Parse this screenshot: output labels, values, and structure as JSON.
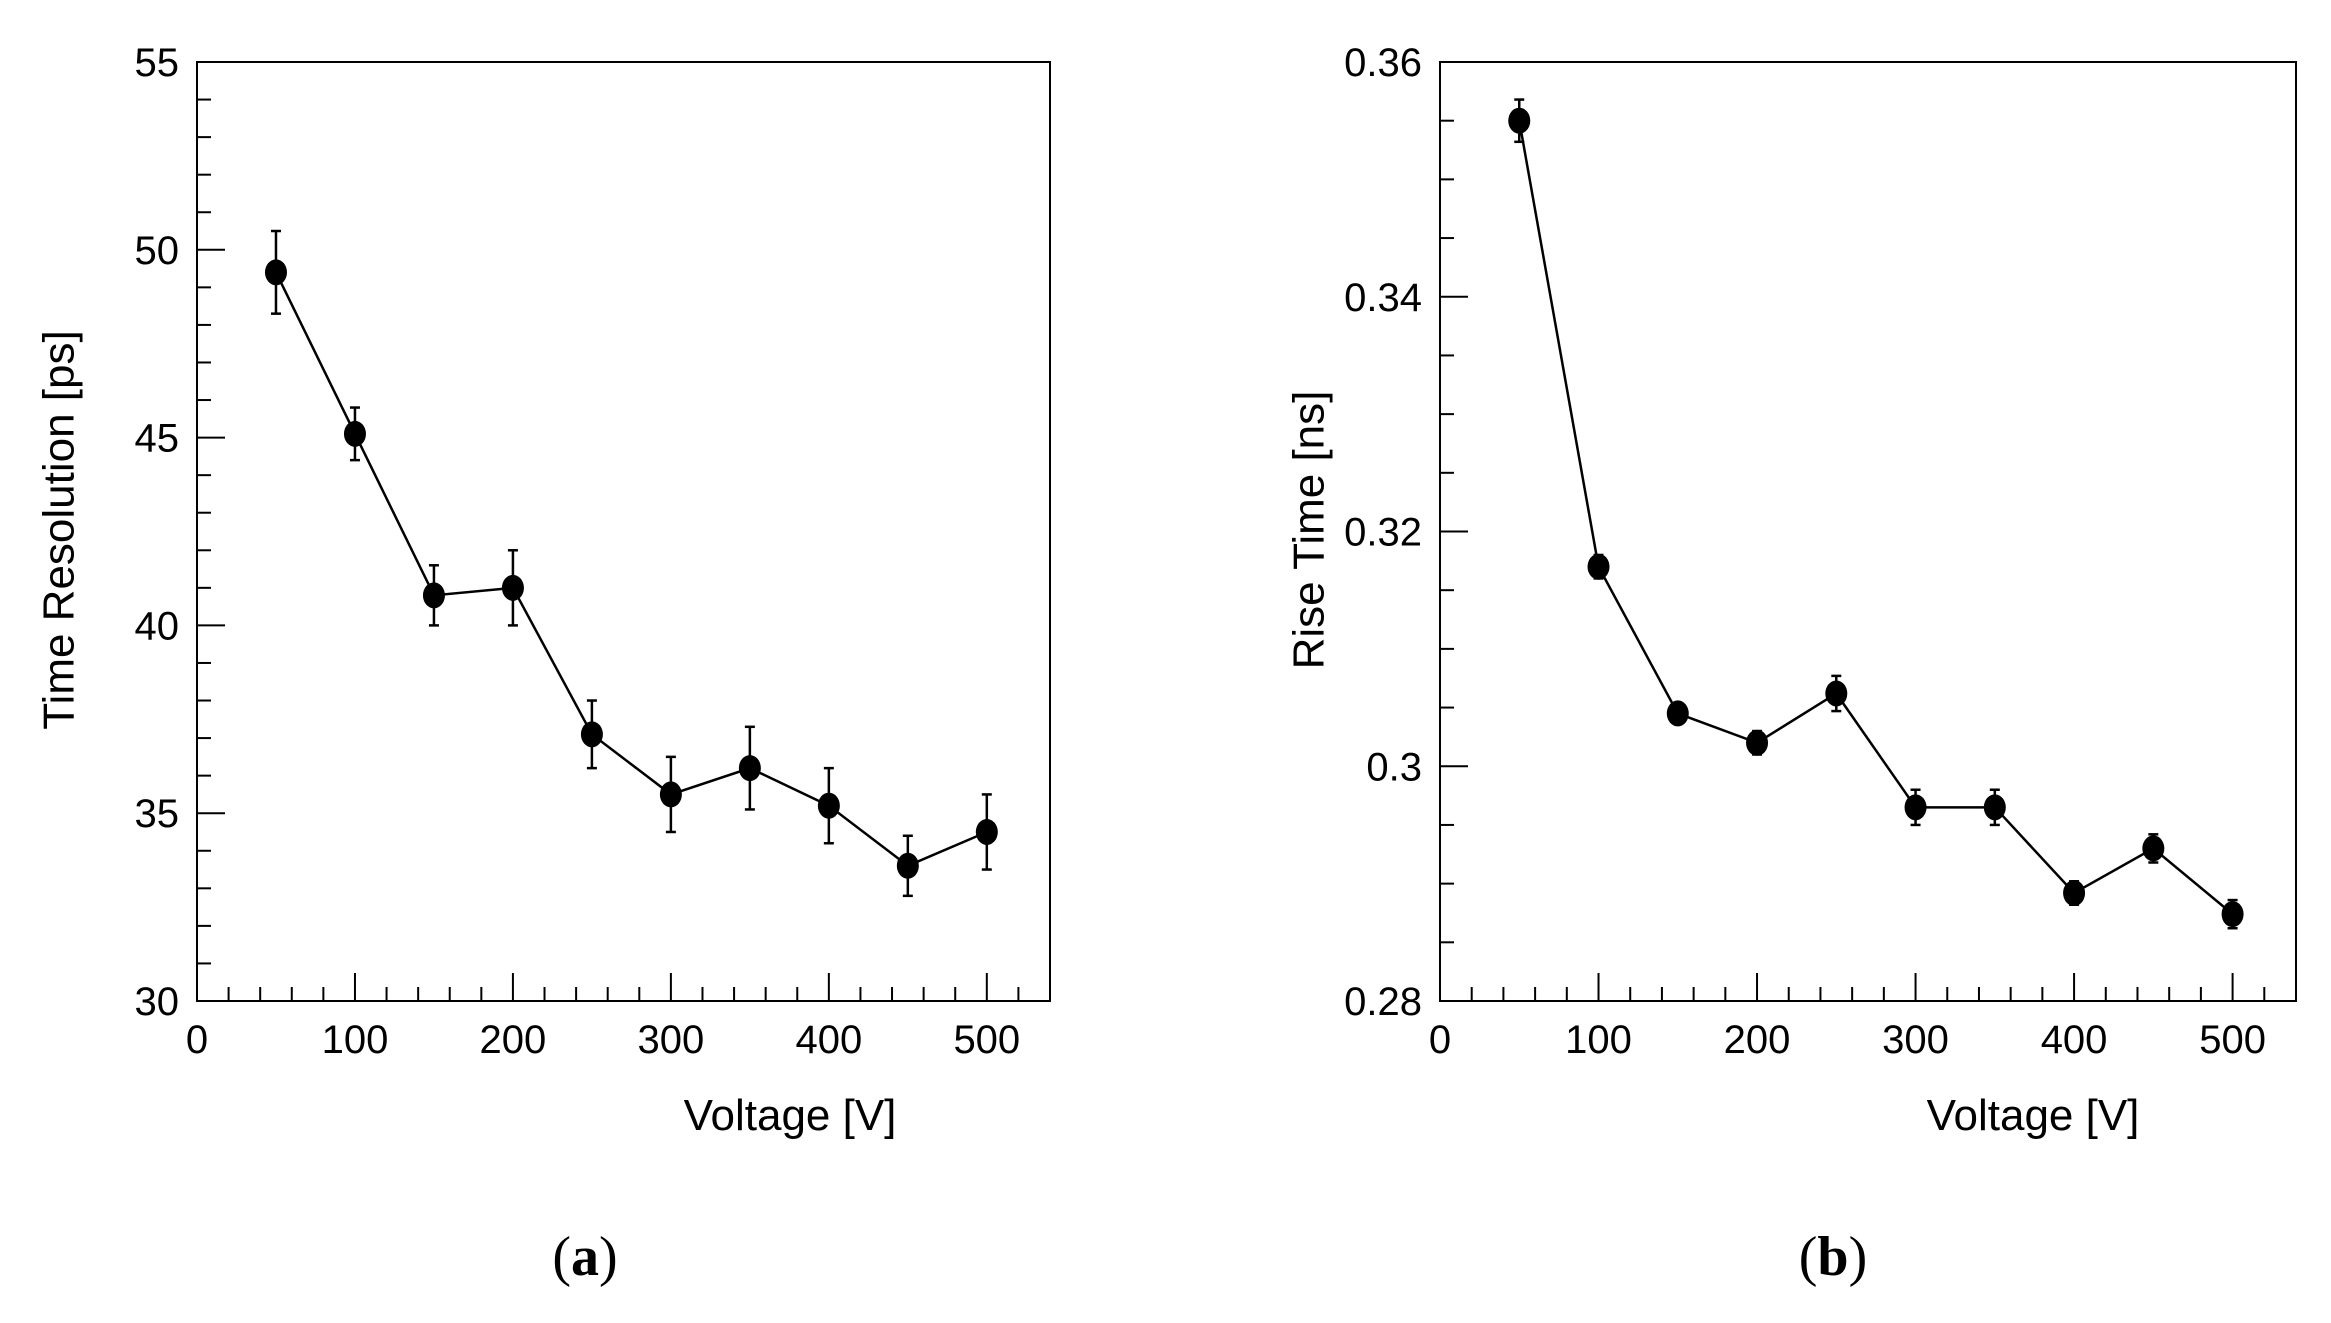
{
  "chart_data": [
    {
      "type": "line",
      "panel_label": "a",
      "xlabel": "Voltage [V]",
      "ylabel": "Time Resolution [ps]",
      "xlim": [
        0,
        540
      ],
      "ylim": [
        30,
        55
      ],
      "xticks": [
        0,
        100,
        200,
        300,
        400,
        500
      ],
      "yticks": [
        30,
        35,
        40,
        45,
        50,
        55
      ],
      "ytick_labels": [
        "30",
        "35",
        "40",
        "45",
        "50",
        "55"
      ],
      "markers": "filled-circle",
      "error_bars": true,
      "series": [
        {
          "name": "Time Resolution",
          "x": [
            50,
            100,
            150,
            200,
            250,
            300,
            350,
            400,
            450,
            500
          ],
          "y": [
            49.4,
            45.1,
            40.8,
            41.0,
            37.1,
            35.5,
            36.2,
            35.2,
            33.6,
            34.5
          ],
          "yerr": [
            1.1,
            0.7,
            0.8,
            1.0,
            0.9,
            1.0,
            1.1,
            1.0,
            0.8,
            1.0
          ]
        }
      ]
    },
    {
      "type": "line",
      "panel_label": "b",
      "xlabel": "Voltage [V]",
      "ylabel": "Rise Time [ns]",
      "xlim": [
        0,
        540
      ],
      "ylim": [
        0.28,
        0.36
      ],
      "xticks": [
        0,
        100,
        200,
        300,
        400,
        500
      ],
      "yticks": [
        0.28,
        0.3,
        0.32,
        0.34,
        0.36
      ],
      "ytick_labels": [
        "0.28",
        "0.3",
        "0.32",
        "0.34",
        "0.36"
      ],
      "markers": "filled-circle",
      "error_bars": true,
      "series": [
        {
          "name": "Rise Time",
          "x": [
            50,
            100,
            150,
            200,
            250,
            300,
            350,
            400,
            450,
            500
          ],
          "y": [
            0.355,
            0.317,
            0.3045,
            0.302,
            0.3062,
            0.2965,
            0.2965,
            0.2892,
            0.293,
            0.2874
          ],
          "yerr": [
            0.0018,
            0.001,
            0.0008,
            0.001,
            0.0015,
            0.0015,
            0.0015,
            0.001,
            0.0012,
            0.0012
          ]
        }
      ]
    }
  ],
  "colors": {
    "ink": "#000000",
    "background": "#ffffff"
  }
}
